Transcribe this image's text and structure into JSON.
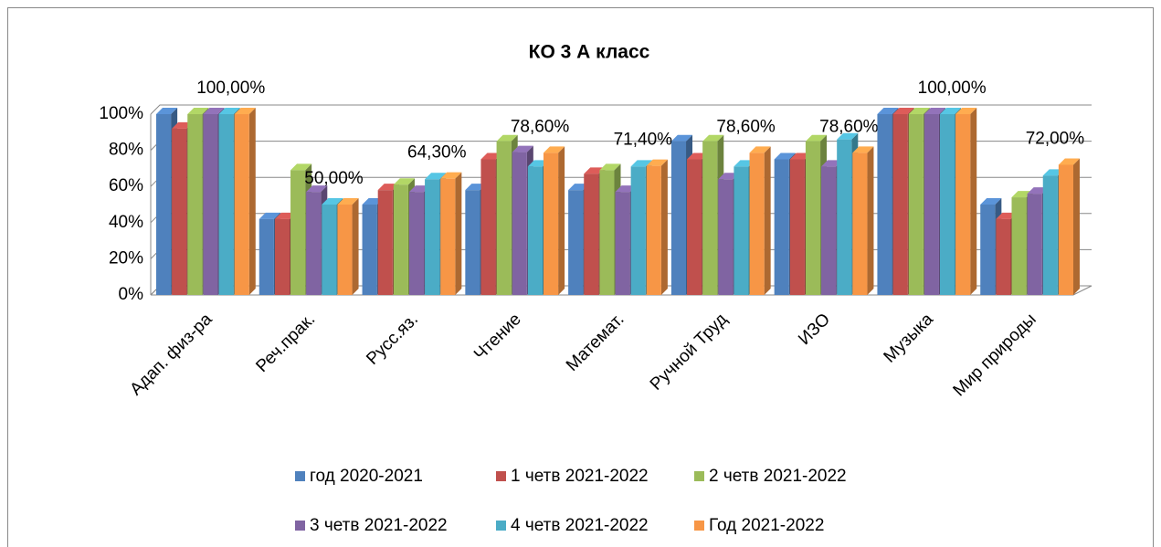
{
  "chart_data": {
    "type": "bar3d",
    "title": "КО 3 А класс",
    "categories": [
      "Адап. физ-ра",
      "Реч.прак.",
      "Русс.яз.",
      "Чтение",
      "Математ.",
      "Ручной Труд",
      "ИЗО",
      "Музыка",
      "Мир природы"
    ],
    "series": [
      {
        "name": "год 2020-2021",
        "color": "#4f81bd",
        "values": [
          100,
          42,
          50,
          58,
          58,
          85,
          75,
          100,
          50
        ]
      },
      {
        "name": "1 четв 2021-2022",
        "color": "#c0504d",
        "values": [
          92,
          42,
          58,
          75,
          67,
          75,
          75,
          100,
          42
        ]
      },
      {
        "name": "2 четв 2021-2022",
        "color": "#9bbb59",
        "values": [
          100,
          69,
          61,
          85,
          69,
          85,
          85,
          100,
          54
        ]
      },
      {
        "name": "3 четв 2021-2022",
        "color": "#8064a2",
        "values": [
          100,
          57,
          57,
          79,
          57,
          64,
          71,
          100,
          56
        ]
      },
      {
        "name": "4 четв 2021-2022",
        "color": "#4bacc6",
        "values": [
          100,
          50,
          64,
          71,
          71,
          71,
          86,
          100,
          66
        ]
      },
      {
        "name": "Год 2021-2022",
        "color": "#f79646",
        "values": [
          100,
          50,
          64.3,
          78.6,
          71.4,
          78.6,
          78.6,
          100,
          72
        ],
        "value_labels": [
          "100,00%",
          "50,00%",
          "64,30%",
          "78,60%",
          "71,40%",
          "78,60%",
          "78,60%",
          "100,00%",
          "72,00%"
        ]
      }
    ],
    "ylim": [
      0,
      100
    ],
    "yticks": [
      {
        "value": 0,
        "label": "0%"
      },
      {
        "value": 20,
        "label": "20%"
      },
      {
        "value": 40,
        "label": "40%"
      },
      {
        "value": 60,
        "label": "60%"
      },
      {
        "value": 80,
        "label": "80%"
      },
      {
        "value": 100,
        "label": "100%"
      }
    ],
    "grid": true,
    "legend": "bottom"
  }
}
